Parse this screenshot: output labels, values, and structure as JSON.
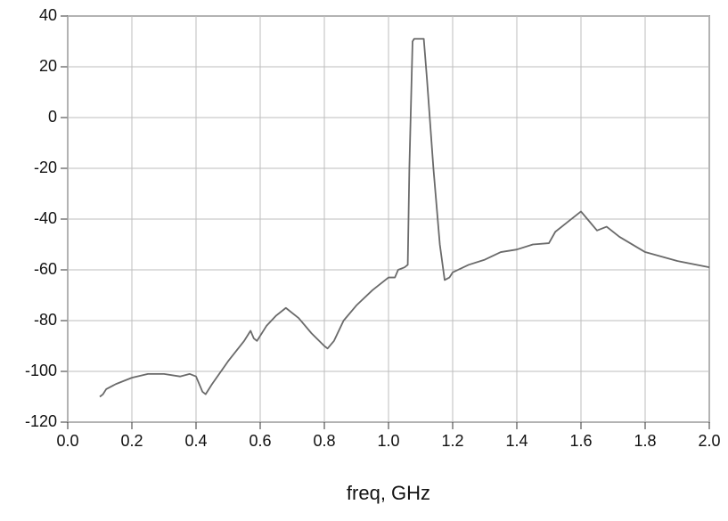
{
  "chart_data": {
    "type": "line",
    "x_label": "freq, GHz",
    "x": [
      0.1,
      0.11,
      0.12,
      0.15,
      0.2,
      0.25,
      0.3,
      0.35,
      0.38,
      0.4,
      0.42,
      0.43,
      0.45,
      0.5,
      0.55,
      0.57,
      0.58,
      0.59,
      0.62,
      0.65,
      0.68,
      0.72,
      0.76,
      0.8,
      0.81,
      0.83,
      0.86,
      0.9,
      0.95,
      1.0,
      1.02,
      1.03,
      1.05,
      1.06,
      1.065,
      1.07,
      1.075,
      1.08,
      1.11,
      1.12,
      1.14,
      1.15,
      1.16,
      1.175,
      1.19,
      1.2,
      1.25,
      1.3,
      1.35,
      1.4,
      1.45,
      1.5,
      1.52,
      1.55,
      1.6,
      1.62,
      1.65,
      1.68,
      1.72,
      1.8,
      1.9,
      2.0
    ],
    "series": [
      {
        "color": "#6a6a6a",
        "values": [
          -110,
          -109,
          -107,
          -105,
          -102.5,
          -101,
          -101,
          -102,
          -101,
          -102,
          -108,
          -109,
          -105,
          -96,
          -88,
          -84,
          -87,
          -88,
          -82,
          -78,
          -75,
          -79,
          -85,
          -90,
          -91,
          -88,
          -80,
          -74,
          -68,
          -63,
          -63,
          -60,
          -59,
          -58,
          -20,
          5,
          30,
          31,
          31,
          15,
          -20,
          -35,
          -50,
          -64,
          -63,
          -61,
          -58,
          -56,
          -53,
          -52,
          -50,
          -49.5,
          -45,
          -42,
          -37,
          -40,
          -44.5,
          -43,
          -47,
          -53,
          -56.5,
          -59
        ]
      }
    ],
    "xlim": [
      0,
      2
    ],
    "ylim": [
      -120,
      40
    ],
    "xticks": [
      {
        "value": 0,
        "label": "0.0"
      },
      {
        "value": 0.2,
        "label": "0.2"
      },
      {
        "value": 0.4,
        "label": "0.4"
      },
      {
        "value": 0.6,
        "label": "0.6"
      },
      {
        "value": 0.8,
        "label": "0.8"
      },
      {
        "value": 1,
        "label": "1.0"
      },
      {
        "value": 1.2,
        "label": "1.2"
      },
      {
        "value": 1.4,
        "label": "1.4"
      },
      {
        "value": 1.6,
        "label": "1.6"
      },
      {
        "value": 1.8,
        "label": "1.8"
      },
      {
        "value": 2,
        "label": "2.0"
      }
    ],
    "yticks": [
      -120,
      -100,
      -80,
      -60,
      -40,
      -20,
      0,
      20,
      40
    ],
    "grid": true
  }
}
